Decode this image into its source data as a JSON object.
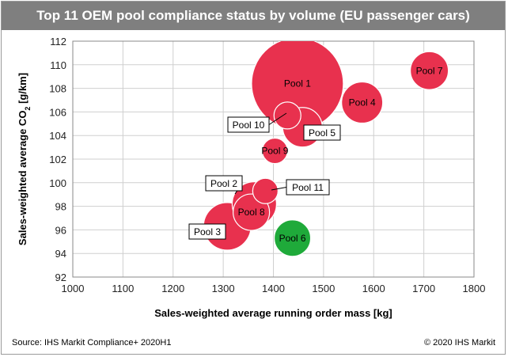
{
  "header": {
    "title": "Top 11 OEM pool compliance status by volume (EU passenger cars)"
  },
  "footer": {
    "source": "Source: IHS Markit Compliance+ 2020H1",
    "copyright": "© 2020 IHS Markit"
  },
  "colors": {
    "red": "#e8314e",
    "green": "#1faa3a",
    "grid": "#cfcfcf"
  },
  "chart_data": {
    "type": "bubble",
    "title": "Top 11 OEM pool compliance status by volume (EU passenger cars)",
    "xlabel": "Sales-weighted average running order mass [kg]",
    "ylabel_main": "Sales-weighted average CO",
    "ylabel_sub": "2",
    "ylabel_unit": " [g/km]",
    "xlim": [
      1000,
      1800
    ],
    "ylim": [
      92,
      112
    ],
    "xticks": [
      1000,
      1100,
      1200,
      1300,
      1400,
      1500,
      1600,
      1700,
      1800
    ],
    "yticks": [
      92,
      94,
      96,
      98,
      100,
      102,
      104,
      106,
      108,
      110,
      112
    ],
    "grid": true,
    "points": [
      {
        "name": "Pool 1",
        "x": 1448,
        "y": 108.4,
        "size": 58,
        "color": "red",
        "label": "inside"
      },
      {
        "name": "Pool 7",
        "x": 1711,
        "y": 109.5,
        "size": 24,
        "color": "red",
        "label": "inside"
      },
      {
        "name": "Pool 4",
        "x": 1577,
        "y": 106.8,
        "size": 26,
        "color": "red",
        "label": "inside"
      },
      {
        "name": "Pool 5",
        "x": 1458,
        "y": 104.7,
        "size": 25,
        "color": "red",
        "label": "callout"
      },
      {
        "name": "Pool 10",
        "x": 1428,
        "y": 105.7,
        "size": 17,
        "color": "red",
        "label": "callout"
      },
      {
        "name": "Pool 9",
        "x": 1403,
        "y": 102.7,
        "size": 16,
        "color": "red",
        "label": "inside"
      },
      {
        "name": "Pool 2",
        "x": 1362,
        "y": 98.2,
        "size": 28,
        "color": "red",
        "label": "callout"
      },
      {
        "name": "Pool 11",
        "x": 1384,
        "y": 99.3,
        "size": 16,
        "color": "red",
        "label": "callout"
      },
      {
        "name": "Pool 8",
        "x": 1356,
        "y": 97.5,
        "size": 23,
        "color": "red",
        "label": "inside"
      },
      {
        "name": "Pool 3",
        "x": 1308,
        "y": 96.3,
        "size": 30,
        "color": "red",
        "label": "callout"
      },
      {
        "name": "Pool 6",
        "x": 1438,
        "y": 95.3,
        "size": 23,
        "color": "green",
        "label": "inside"
      }
    ]
  }
}
